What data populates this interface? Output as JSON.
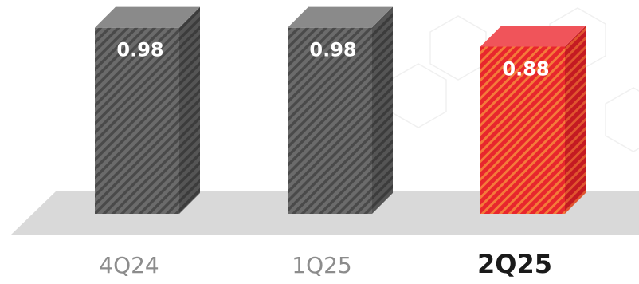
{
  "chart_data": {
    "type": "bar",
    "style": "3d-striped-columns",
    "categories": [
      "4Q24",
      "1Q25",
      "2Q25"
    ],
    "values": [
      0.98,
      0.98,
      0.88
    ],
    "value_labels": [
      "0.98",
      "0.98",
      "0.88"
    ],
    "highlight_index": 2,
    "ylim": [
      0,
      1.05
    ],
    "grid": false,
    "title": "",
    "xlabel": "",
    "ylabel": "",
    "colors": {
      "normal_face": "#6b6b6b",
      "normal_stripe": "#4a4a4a",
      "normal_side": "#4f4f4f",
      "normal_top": "#8a8a8a",
      "highlight_face": "#e8262d",
      "highlight_stripe": "#f5a623",
      "highlight_side": "#c41a22",
      "highlight_top": "#f0545a",
      "floor": "#d9d9d9",
      "category_label": "#8c8c8c",
      "category_label_highlight": "#1a1a1a",
      "value_label": "#ffffff",
      "background_hex": "#f2f2f2"
    }
  }
}
